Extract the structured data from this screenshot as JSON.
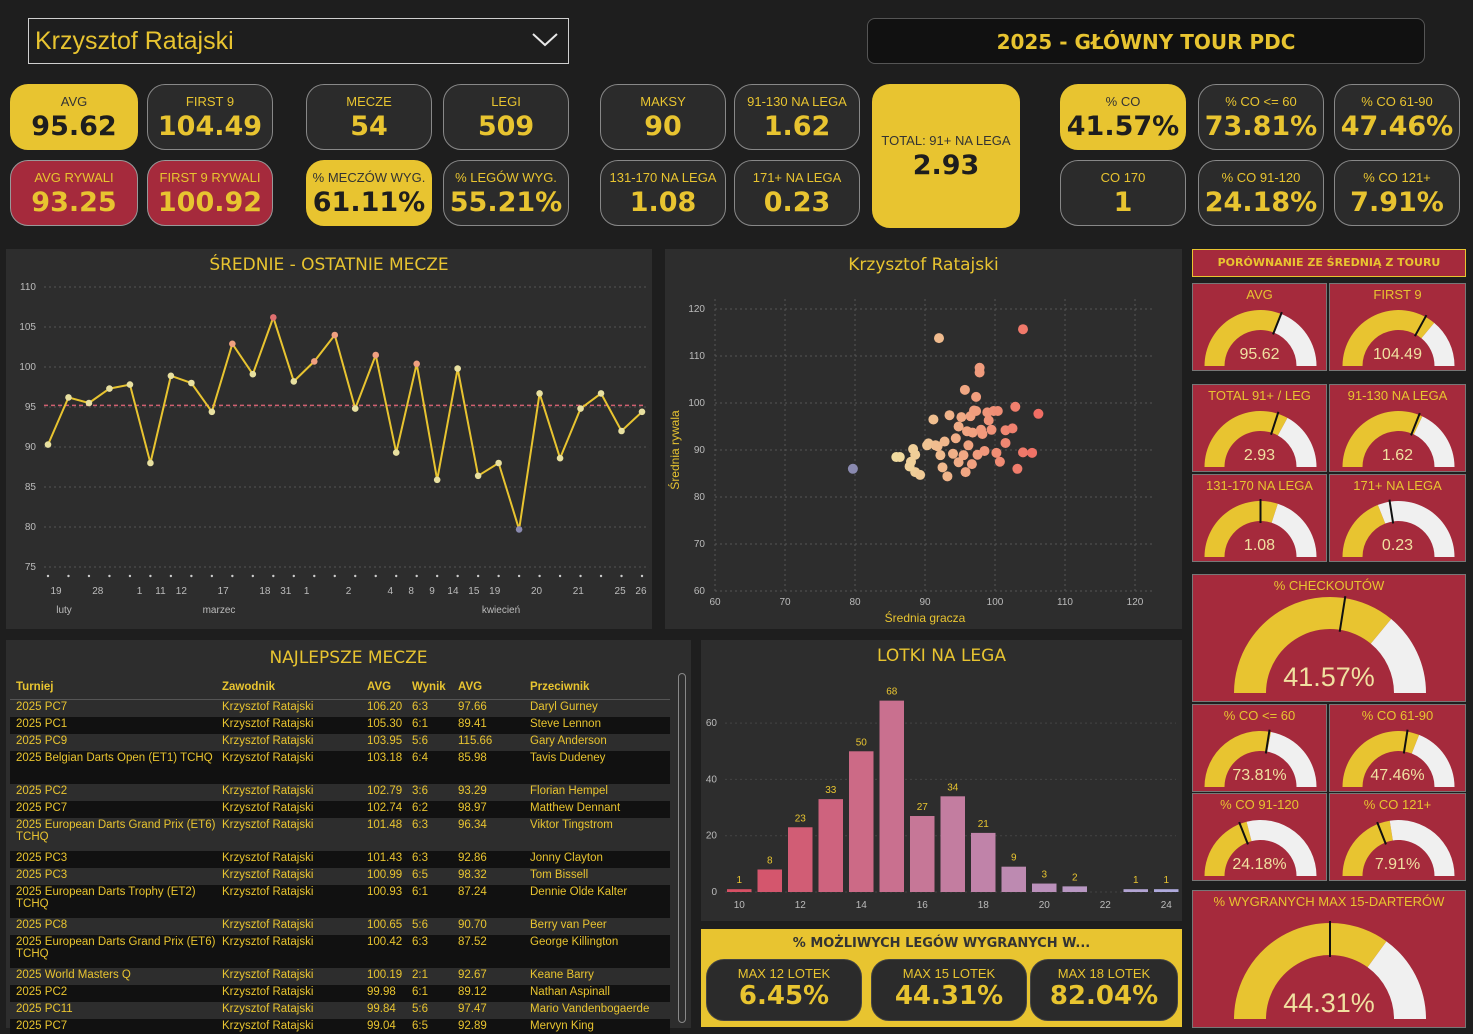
{
  "filter": {
    "player": "Krzysztof Ratajski"
  },
  "header": {
    "title": "2025 - GŁÓWNY TOUR PDC"
  },
  "kpis": {
    "avg": {
      "label": "AVG",
      "value": "95.62"
    },
    "first9": {
      "label": "FIRST 9",
      "value": "104.49"
    },
    "avg_opp": {
      "label": "AVG RYWALI",
      "value": "93.25"
    },
    "first9_opp": {
      "label": "FIRST 9 RYWALI",
      "value": "100.92"
    },
    "matches": {
      "label": "MECZE",
      "value": "54"
    },
    "legs": {
      "label": "LEGI",
      "value": "509"
    },
    "match_win": {
      "label": "% MECZÓW WYG.",
      "value": "61.11%"
    },
    "leg_win": {
      "label": "% LEGÓW WYG.",
      "value": "55.21%"
    },
    "max": {
      "label": "MAKSY",
      "value": "90"
    },
    "s91_130": {
      "label": "91-130 NA LEGA",
      "value": "1.62"
    },
    "s131_170": {
      "label": "131-170 NA LEGA",
      "value": "1.08"
    },
    "s171": {
      "label": "171+ NA LEGA",
      "value": "0.23"
    },
    "total91": {
      "label": "TOTAL: 91+ NA LEGA",
      "value": "2.93"
    },
    "co": {
      "label": "% CO",
      "value": "41.57%"
    },
    "co60": {
      "label": "% CO <= 60",
      "value": "73.81%"
    },
    "co61_90": {
      "label": "% CO 61-90",
      "value": "47.46%"
    },
    "co170": {
      "label": "CO 170",
      "value": "1"
    },
    "co91_120": {
      "label": "% CO 91-120",
      "value": "24.18%"
    },
    "co121": {
      "label": "% CO 121+",
      "value": "7.91%"
    }
  },
  "line_chart": {
    "title": "ŚREDNIE - OSTATNIE MECZE",
    "yticks": [
      "110",
      "105",
      "100",
      "95",
      "90",
      "85",
      "80",
      "75"
    ],
    "xdays": [
      "19",
      "28",
      "1",
      "11",
      "12",
      "17",
      "18",
      "31",
      "1",
      "2",
      "4",
      "8",
      "9",
      "14",
      "15",
      "19",
      "20",
      "21",
      "25",
      "26"
    ],
    "months": [
      "luty",
      "marzec",
      "kwiecień"
    ]
  },
  "chart_data": [
    {
      "type": "line",
      "title": "ŚREDNIE - OSTATNIE MECZE",
      "ylim": [
        75,
        110
      ],
      "reference": 95.2,
      "series": [
        {
          "name": "AVG",
          "values": [
            90.3,
            96.2,
            95.5,
            97.3,
            97.8,
            88.0,
            98.9,
            98.0,
            94.4,
            102.9,
            99.1,
            106.2,
            98.2,
            100.7,
            104.0,
            94.8,
            101.5,
            89.3,
            100.4,
            85.9,
            99.8,
            86.4,
            88.0,
            79.7,
            96.7,
            88.6,
            94.8,
            96.7,
            92.0,
            94.4
          ]
        }
      ]
    },
    {
      "type": "scatter",
      "title": "Krzysztof Ratajski",
      "xlabel": "Średnia gracza",
      "ylabel": "Średnia rywala",
      "xlim": [
        60,
        120
      ],
      "ylim": [
        60,
        120
      ],
      "points": [
        [
          79.7,
          86
        ],
        [
          85.9,
          88.5
        ],
        [
          86.4,
          88.5
        ],
        [
          88,
          87.5
        ],
        [
          88.6,
          85.3
        ],
        [
          88.6,
          89
        ],
        [
          88.3,
          90.2
        ],
        [
          87.8,
          86.5
        ],
        [
          89.3,
          84.7
        ],
        [
          90.3,
          91
        ],
        [
          90.5,
          91.4
        ],
        [
          91.2,
          96.5
        ],
        [
          91.5,
          91
        ],
        [
          91.8,
          90.8
        ],
        [
          92.0,
          113.8
        ],
        [
          92.2,
          88.9
        ],
        [
          92.5,
          86.3
        ],
        [
          92.8,
          91.8
        ],
        [
          93.2,
          84.4
        ],
        [
          93.5,
          97.4
        ],
        [
          94.0,
          89.2
        ],
        [
          94.4,
          92.5
        ],
        [
          94.8,
          87.4
        ],
        [
          94.8,
          95
        ],
        [
          95.2,
          97
        ],
        [
          95.5,
          88.9
        ],
        [
          95.7,
          102.8
        ],
        [
          95.8,
          85.3
        ],
        [
          96.0,
          94
        ],
        [
          96.2,
          91
        ],
        [
          96.5,
          97.2
        ],
        [
          96.7,
          87
        ],
        [
          96.8,
          93.7
        ],
        [
          97.0,
          98.4
        ],
        [
          97.3,
          98.3
        ],
        [
          97.3,
          101.3
        ],
        [
          97.5,
          89
        ],
        [
          97.8,
          106.5
        ],
        [
          97.8,
          107.5
        ],
        [
          98.0,
          94.3
        ],
        [
          98.2,
          93.4
        ],
        [
          98.5,
          89.8
        ],
        [
          98.9,
          98
        ],
        [
          99.1,
          96.3
        ],
        [
          99.5,
          94.3
        ],
        [
          99.8,
          98.3
        ],
        [
          100.4,
          98.3
        ],
        [
          100.2,
          89.4
        ],
        [
          100.7,
          87.5
        ],
        [
          101.5,
          91.5
        ],
        [
          101.5,
          94.2
        ],
        [
          102.9,
          99.2
        ],
        [
          104.0,
          115.7
        ],
        [
          104.0,
          89.5
        ],
        [
          105.3,
          89.4
        ],
        [
          106.2,
          97.7
        ],
        [
          103.2,
          86
        ],
        [
          102.5,
          94.6
        ]
      ]
    },
    {
      "type": "bar",
      "title": "LOTKI NA LEGA",
      "categories": [
        "10",
        "11",
        "12",
        "13",
        "14",
        "15",
        "16",
        "17",
        "18",
        "19",
        "20",
        "21",
        "22",
        "23",
        "24"
      ],
      "values": [
        1,
        8,
        23,
        33,
        50,
        68,
        27,
        34,
        21,
        9,
        3,
        2,
        0,
        1,
        1
      ],
      "ylim": [
        0,
        70
      ],
      "yticks": [
        "0",
        "20",
        "40",
        "60"
      ],
      "xticks": [
        "10",
        "12",
        "14",
        "16",
        "18",
        "20",
        "22",
        "24"
      ]
    }
  ],
  "scatter": {
    "title": "Krzysztof Ratajski",
    "xlabel": "Średnia gracza",
    "ylabel": "Średnia rywala",
    "ticks": [
      "60",
      "70",
      "80",
      "90",
      "100",
      "110",
      "120"
    ],
    "yticks": [
      "120",
      "110",
      "100",
      "90",
      "80",
      "70",
      "60"
    ]
  },
  "table": {
    "title": "NAJLEPSZE MECZE",
    "headers": [
      "Turniej",
      "Zawodnik",
      "AVG",
      "Wynik",
      "AVG",
      "Przeciwnik"
    ],
    "rows": [
      [
        "2025 PC7",
        "Krzysztof Ratajski",
        "106.20",
        "6:3",
        "97.66",
        "Daryl Gurney"
      ],
      [
        "2025 PC1",
        "Krzysztof Ratajski",
        "105.30",
        "6:1",
        "89.41",
        "Steve Lennon"
      ],
      [
        "2025 PC9",
        "Krzysztof Ratajski",
        "103.95",
        "5:6",
        "115.66",
        "Gary Anderson"
      ],
      [
        "2025 Belgian Darts Open (ET1) TCHQ",
        "Krzysztof Ratajski",
        "103.18",
        "6:4",
        "85.98",
        "Tavis Dudeney"
      ],
      [
        "2025 PC2",
        "Krzysztof Ratajski",
        "102.79",
        "3:6",
        "93.29",
        "Florian Hempel"
      ],
      [
        "2025 PC7",
        "Krzysztof Ratajski",
        "102.74",
        "6:2",
        "98.97",
        "Matthew Dennant"
      ],
      [
        "2025 European Darts Grand Prix (ET6) TCHQ",
        "Krzysztof Ratajski",
        "101.48",
        "6:3",
        "96.34",
        "Viktor Tingstrom"
      ],
      [
        "2025 PC3",
        "Krzysztof Ratajski",
        "101.43",
        "6:3",
        "92.86",
        "Jonny Clayton"
      ],
      [
        "2025 PC3",
        "Krzysztof Ratajski",
        "100.99",
        "6:5",
        "98.32",
        "Tom Bissell"
      ],
      [
        "2025 European Darts Trophy (ET2) TCHQ",
        "Krzysztof Ratajski",
        "100.93",
        "6:1",
        "87.24",
        "Dennie Olde Kalter"
      ],
      [
        "2025 PC8",
        "Krzysztof Ratajski",
        "100.65",
        "5:6",
        "90.70",
        "Berry van Peer"
      ],
      [
        "2025 European Darts Grand Prix (ET6) TCHQ",
        "Krzysztof Ratajski",
        "100.42",
        "6:3",
        "87.52",
        "George Killington"
      ],
      [
        "2025 World Masters Q",
        "Krzysztof Ratajski",
        "100.19",
        "2:1",
        "92.67",
        "Keane Barry"
      ],
      [
        "2025 PC2",
        "Krzysztof Ratajski",
        "99.98",
        "6:1",
        "89.12",
        "Nathan Aspinall"
      ],
      [
        "2025 PC11",
        "Krzysztof Ratajski",
        "99.84",
        "5:6",
        "97.47",
        "Mario Vandenbogaerde"
      ],
      [
        "2025 PC7",
        "Krzysztof Ratajski",
        "99.04",
        "6:5",
        "92.89",
        "Mervyn King"
      ]
    ]
  },
  "bars": {
    "title": "LOTKI NA LEGA"
  },
  "possible": {
    "title": "% MOŻLIWYCH LEGÓW WYGRANYCH W...",
    "items": [
      {
        "label": "MAX 12 LOTEK",
        "value": "6.45%"
      },
      {
        "label": "MAX 15 LOTEK",
        "value": "44.31%"
      },
      {
        "label": "MAX 18 LOTEK",
        "value": "82.04%"
      }
    ]
  },
  "compare": {
    "title": "PORÓWNANIE ZE ŚREDNIĄ Z TOURU",
    "gauges": [
      {
        "label": "AVG",
        "value": "95.62",
        "frac": 0.62,
        "target": 0.62
      },
      {
        "label": "FIRST 9",
        "value": "104.49",
        "frac": 0.72,
        "target": 0.66
      },
      {
        "label": "TOTAL 91+ / LEG",
        "value": "2.93",
        "frac": 0.66,
        "target": 0.6
      },
      {
        "label": "91-130 NA LEGA",
        "value": "1.62",
        "frac": 0.64,
        "target": 0.62
      },
      {
        "label": "131-170 NA LEGA",
        "value": "1.08",
        "frac": 0.6,
        "target": 0.5
      },
      {
        "label": "171+ NA LEGA",
        "value": "0.23",
        "frac": 0.38,
        "target": 0.45
      },
      {
        "label": "% CHECKOUTÓW",
        "value": "41.57%",
        "frac": 0.72,
        "target": 0.55
      },
      {
        "label": "% CO <= 60",
        "value": "73.81%",
        "frac": 0.56,
        "target": 0.55
      },
      {
        "label": "% CO 61-90",
        "value": "47.46%",
        "frac": 0.62,
        "target": 0.55
      },
      {
        "label": "% CO 91-120",
        "value": "24.18%",
        "frac": 0.42,
        "target": 0.38
      },
      {
        "label": "% CO 121+",
        "value": "7.91%",
        "frac": 0.45,
        "target": 0.38
      },
      {
        "label": "% WYGRANYCH MAX 15-DARTERÓW",
        "value": "44.31%",
        "frac": 0.7,
        "target": 0.5
      }
    ]
  },
  "colors": {
    "yellow": "#e8c430",
    "red": "#a52a3c",
    "bg": "#1e1e1e",
    "panel": "#2d2d2d"
  }
}
